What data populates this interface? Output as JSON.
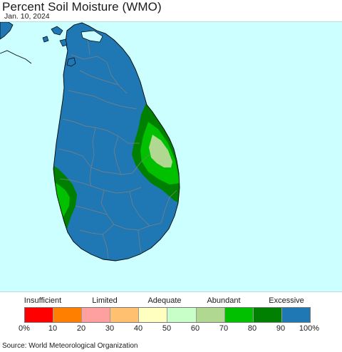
{
  "header": {
    "title": "Percent Soil Moisture (WMO)",
    "date": "Jan. 10, 2024"
  },
  "map": {
    "ocean_color": "#ccffff",
    "land_color": "#1f78b4",
    "border_color": "#808080",
    "coast_color": "#000000",
    "zones": [
      {
        "name": "east-coast-80-90",
        "class": "80-90",
        "color": "#008000"
      },
      {
        "name": "east-coast-70-80",
        "class": "70-80",
        "color": "#00c000"
      },
      {
        "name": "east-coast-60-70",
        "class": "60-70",
        "color": "#b0d890"
      },
      {
        "name": "west-coast-80-90",
        "class": "80-90",
        "color": "#008000"
      },
      {
        "name": "west-coast-70-80",
        "class": "70-80",
        "color": "#00c000"
      }
    ]
  },
  "legend": {
    "categories": [
      {
        "label": "Insufficient",
        "center_tick": 1
      },
      {
        "label": "Limited",
        "center_tick": 3
      },
      {
        "label": "Adequate",
        "center_tick": 5
      },
      {
        "label": "Abundant",
        "center_tick": 7
      },
      {
        "label": "Excessive",
        "center_tick": 9
      }
    ],
    "bins": [
      {
        "range": "0-10",
        "color": "#ff0000"
      },
      {
        "range": "10-20",
        "color": "#ff8000"
      },
      {
        "range": "20-30",
        "color": "#ffa0a0"
      },
      {
        "range": "30-40",
        "color": "#ffc070"
      },
      {
        "range": "40-50",
        "color": "#ffffc0"
      },
      {
        "range": "50-60",
        "color": "#c8ffc8"
      },
      {
        "range": "60-70",
        "color": "#b0d890"
      },
      {
        "range": "70-80",
        "color": "#00c000"
      },
      {
        "range": "80-90",
        "color": "#008000"
      },
      {
        "range": "90-100",
        "color": "#1f78b4"
      }
    ],
    "ticks": [
      "0%",
      "10",
      "20",
      "30",
      "40",
      "50",
      "60",
      "70",
      "80",
      "90",
      "100%"
    ]
  },
  "footer": {
    "source": "Source: World Meteorological Organization"
  }
}
